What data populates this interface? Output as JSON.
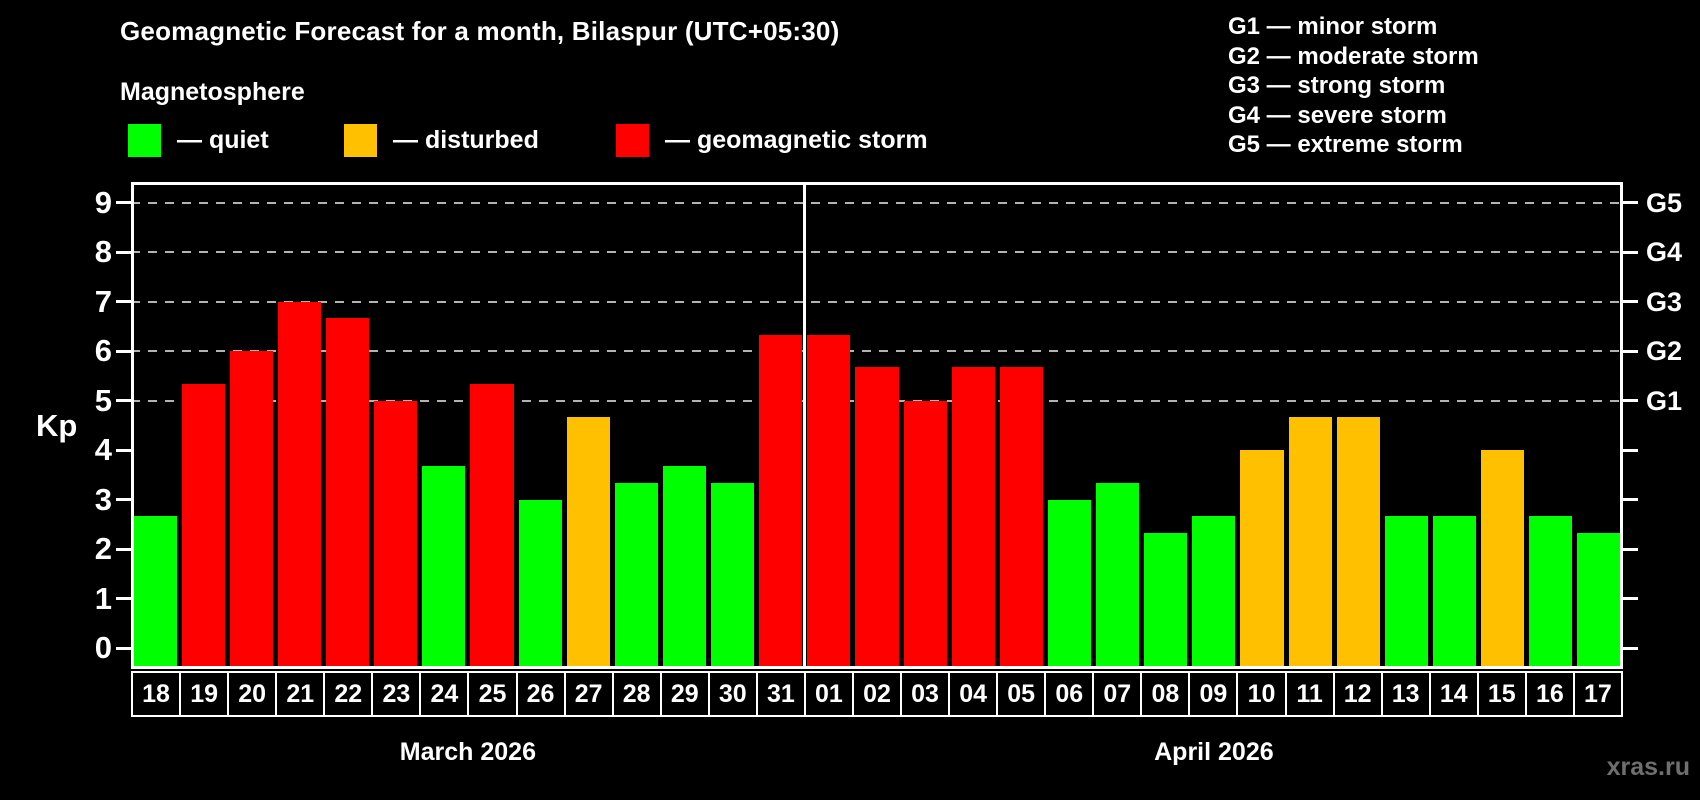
{
  "title": "Geomagnetic Forecast for a month, Bilaspur (UTC+05:30)",
  "subtitle": "Magnetosphere",
  "legend": [
    {
      "key": "quiet",
      "label": "— quiet",
      "color": "#00ff00"
    },
    {
      "key": "disturbed",
      "label": "— disturbed",
      "color": "#ffc000"
    },
    {
      "key": "storm",
      "label": "— geomagnetic storm",
      "color": "#ff0000"
    }
  ],
  "g_legend": [
    "G1 — minor storm",
    "G2 — moderate storm",
    "G3 — strong storm",
    "G4 — severe storm",
    "G5 — extreme storm"
  ],
  "chart_data": {
    "type": "bar",
    "ylabel": "Kp",
    "ylim": [
      0,
      9
    ],
    "yticks": [
      0,
      1,
      2,
      3,
      4,
      5,
      6,
      7,
      8,
      9
    ],
    "grid_values": [
      5,
      6,
      7,
      8,
      9
    ],
    "grid_style": "dashed",
    "right_scale": [
      {
        "value": 5,
        "label": "G1"
      },
      {
        "value": 6,
        "label": "G2"
      },
      {
        "value": 7,
        "label": "G3"
      },
      {
        "value": 8,
        "label": "G4"
      },
      {
        "value": 9,
        "label": "G5"
      }
    ],
    "categories": [
      "18",
      "19",
      "20",
      "21",
      "22",
      "23",
      "24",
      "25",
      "26",
      "27",
      "28",
      "29",
      "30",
      "31",
      "01",
      "02",
      "03",
      "04",
      "05",
      "06",
      "07",
      "08",
      "09",
      "10",
      "11",
      "12",
      "13",
      "14",
      "15",
      "16",
      "17"
    ],
    "values": [
      2.67,
      5.33,
      6,
      7,
      6.67,
      5,
      3.67,
      5.33,
      3,
      4.67,
      3.33,
      3.67,
      3.33,
      6.33,
      6.33,
      5.67,
      5,
      5.67,
      5.67,
      3,
      3.33,
      2.33,
      2.67,
      4,
      4.67,
      4.67,
      2.67,
      2.67,
      4,
      2.67,
      2.33
    ],
    "statuses": [
      "quiet",
      "storm",
      "storm",
      "storm",
      "storm",
      "storm",
      "quiet",
      "storm",
      "quiet",
      "disturbed",
      "quiet",
      "quiet",
      "quiet",
      "storm",
      "storm",
      "storm",
      "storm",
      "storm",
      "storm",
      "quiet",
      "quiet",
      "quiet",
      "quiet",
      "disturbed",
      "disturbed",
      "disturbed",
      "quiet",
      "quiet",
      "disturbed",
      "quiet",
      "quiet"
    ],
    "status_colors": {
      "quiet": "#00ff00",
      "disturbed": "#ffc000",
      "storm": "#ff0000"
    },
    "months": [
      {
        "label": "March 2026",
        "days": 14
      },
      {
        "label": "April 2026",
        "days": 17
      }
    ],
    "divider_after_index": 13
  },
  "colors": {
    "background": "#000000",
    "text": "#ffffff",
    "grid": "#b3b3b3",
    "frame": "#ffffff",
    "watermark": "#6f6f6f"
  },
  "watermark": "xras.ru"
}
